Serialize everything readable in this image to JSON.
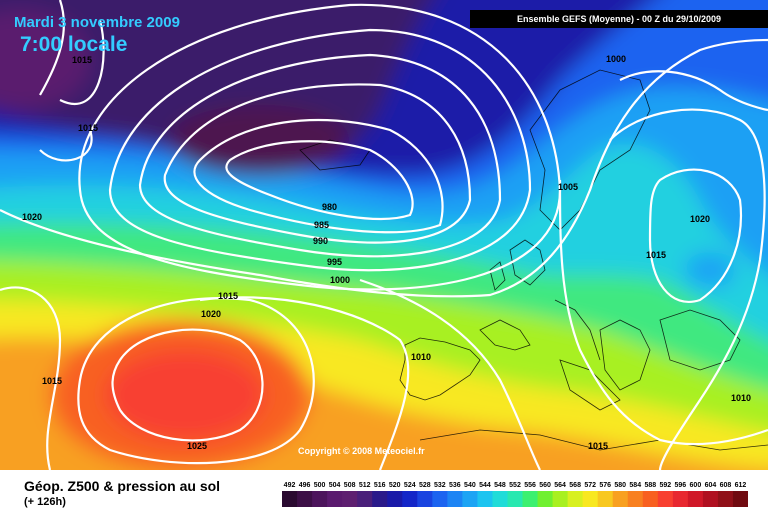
{
  "header": {
    "date": "Mardi 3 novembre 2009",
    "time": "7:00 locale",
    "run": "Ensemble GEFS (Moyenne)  - 00 Z du 29/10/2009"
  },
  "copyright": "Copyright © 2008 Meteociel.fr",
  "footer": {
    "title": "Géop. Z500 & pression au sol",
    "subtitle": "(+ 126h)"
  },
  "isobar_labels": [
    "1015",
    "1015",
    "1020",
    "980",
    "985",
    "990",
    "995",
    "1000",
    "1015",
    "1020",
    "1015",
    "1025",
    "1010",
    "1000",
    "1005",
    "1020",
    "1015",
    "1010",
    "1015"
  ],
  "legend": {
    "values": [
      492,
      496,
      500,
      504,
      508,
      512,
      516,
      520,
      524,
      528,
      532,
      536,
      540,
      544,
      548,
      552,
      556,
      560,
      564,
      568,
      572,
      576,
      580,
      584,
      588,
      592,
      596,
      600,
      604,
      608,
      612
    ],
    "colors": [
      "#2a0a30",
      "#3c0f46",
      "#4c145c",
      "#5a1a6e",
      "#5e1f70",
      "#4a1f7a",
      "#2a1a8a",
      "#1a1aa8",
      "#1426c8",
      "#1a44e0",
      "#1c64f0",
      "#1c84f4",
      "#1ca4f4",
      "#1cc4f0",
      "#20dcd8",
      "#28e8b0",
      "#3cf070",
      "#70f030",
      "#a8f020",
      "#d8f020",
      "#f8e820",
      "#f8c820",
      "#f8a020",
      "#f88020",
      "#f86020",
      "#f84030",
      "#e82830",
      "#d01828",
      "#b01020",
      "#901018",
      "#700a10"
    ]
  }
}
